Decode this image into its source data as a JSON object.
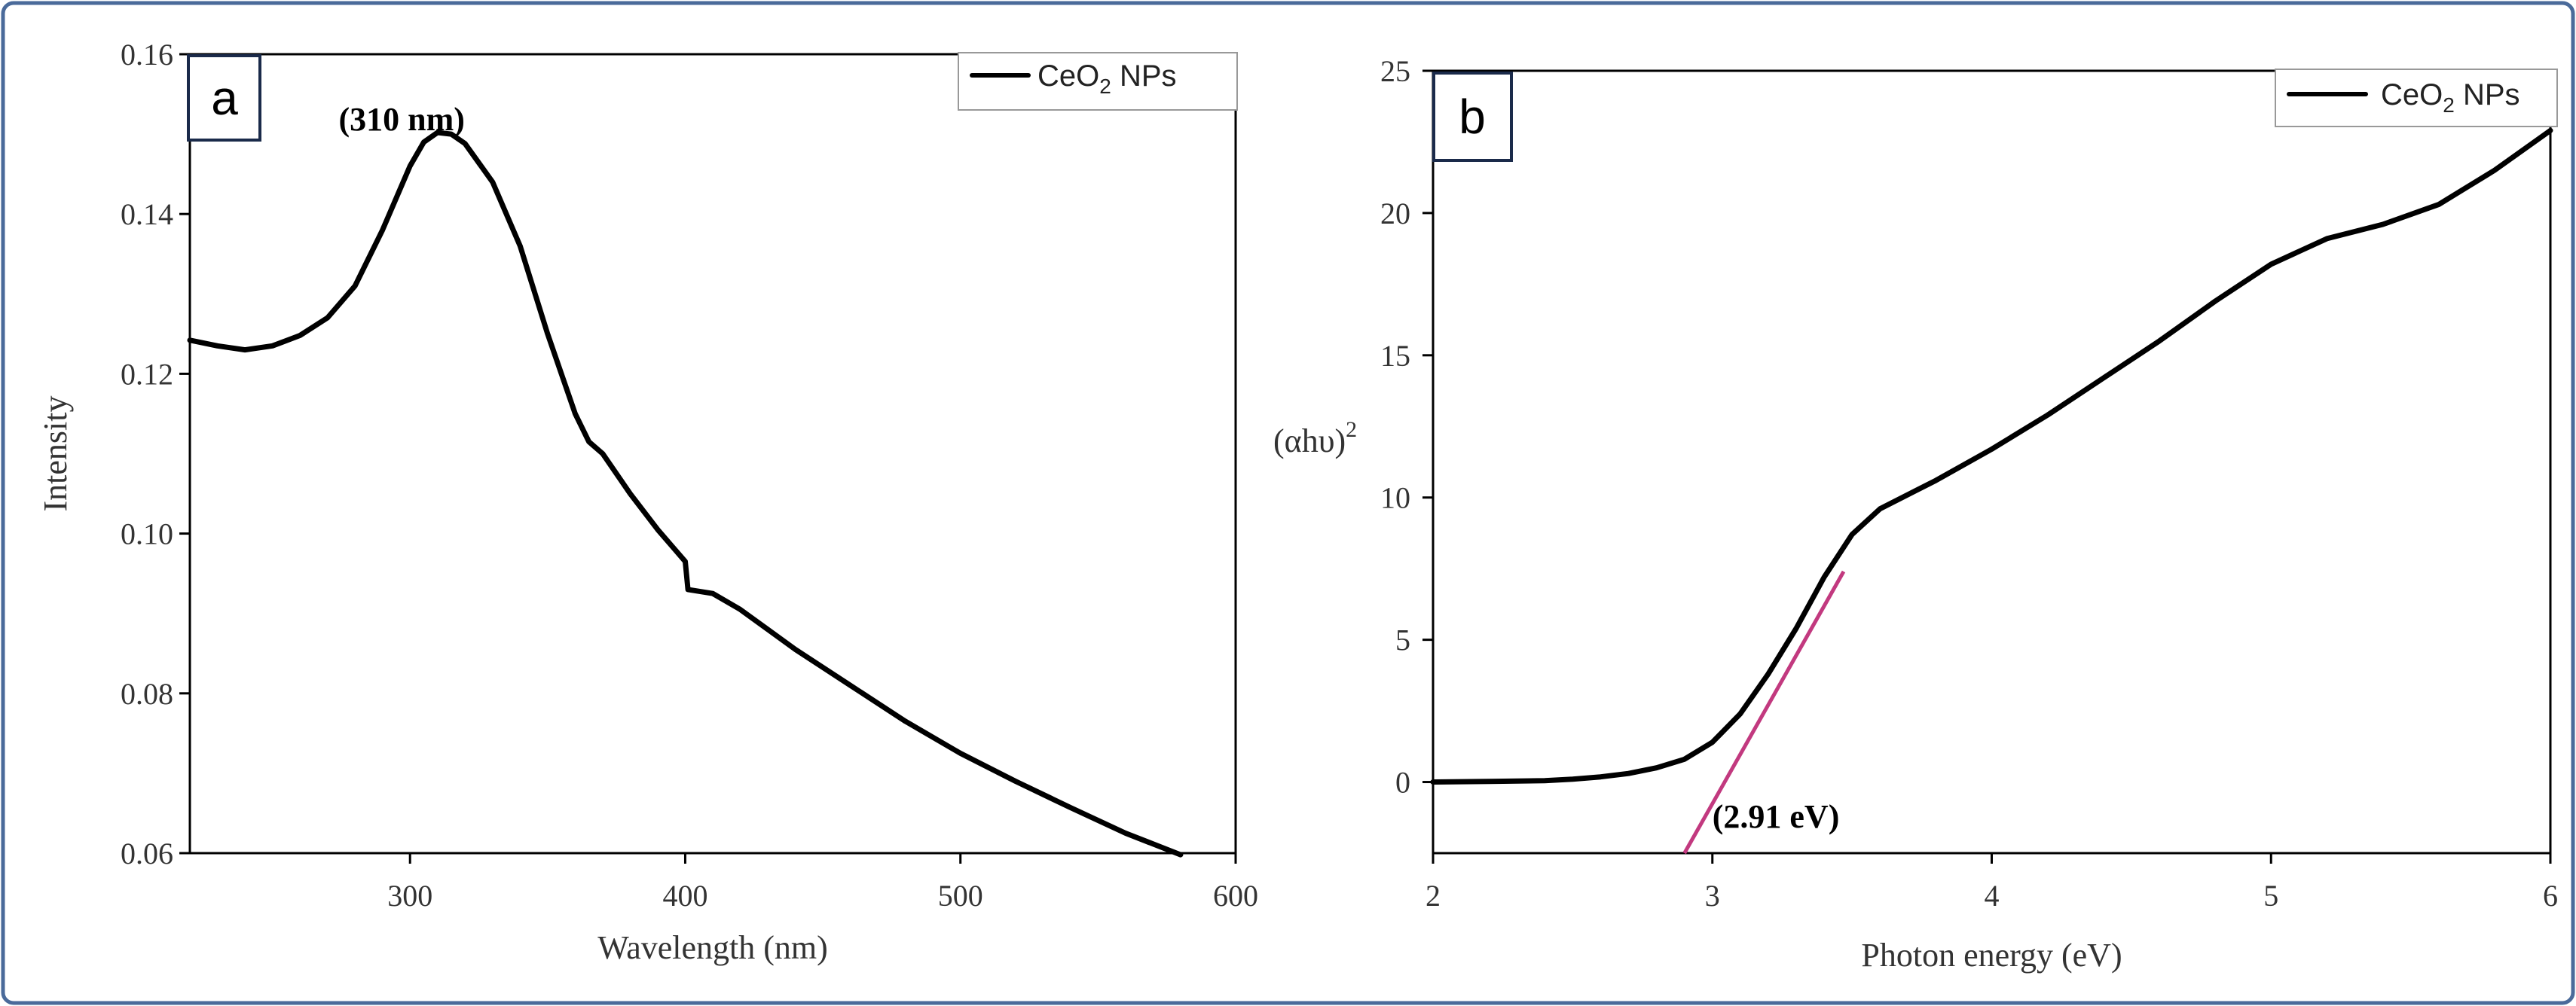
{
  "chart_data": [
    {
      "type": "line",
      "panel_label": "a",
      "title": "",
      "xlabel": "Wavelength (nm)",
      "ylabel": "Intensity",
      "xlim": [
        220,
        600
      ],
      "ylim": [
        0.06,
        0.16
      ],
      "xticks": [
        300,
        400,
        500,
        600
      ],
      "yticks": [
        0.06,
        0.08,
        0.1,
        0.12,
        0.14,
        0.16
      ],
      "ytick_labels": [
        "0.06",
        "0.08",
        "0.10",
        "0.12",
        "0.14",
        "0.16"
      ],
      "grid": false,
      "legend": {
        "position": "top-right",
        "entries": [
          {
            "name": "CeO",
            "subscript": "2",
            "suffix": " NPs"
          }
        ]
      },
      "annotations": [
        {
          "text": "(310 nm)",
          "x": 297,
          "y": 0.1505
        }
      ],
      "series": [
        {
          "name": "CeO2 NPs",
          "x": [
            220,
            230,
            240,
            250,
            260,
            270,
            280,
            290,
            300,
            305,
            310,
            315,
            320,
            330,
            340,
            350,
            360,
            365,
            370,
            380,
            390,
            395,
            400,
            401,
            410,
            420,
            440,
            460,
            480,
            500,
            520,
            540,
            560,
            580
          ],
          "y": [
            0.1242,
            0.1235,
            0.123,
            0.1235,
            0.1248,
            0.127,
            0.131,
            0.138,
            0.146,
            0.149,
            0.1502,
            0.15,
            0.1488,
            0.144,
            0.136,
            0.125,
            0.115,
            0.1115,
            0.11,
            0.105,
            0.1005,
            0.0985,
            0.0965,
            0.093,
            0.0925,
            0.0905,
            0.0855,
            0.081,
            0.0765,
            0.0725,
            0.069,
            0.0657,
            0.0625,
            0.0598
          ]
        }
      ]
    },
    {
      "type": "line",
      "panel_label": "b",
      "title": "",
      "xlabel": "Photon energy (eV)",
      "ylabel": "(αhυ)",
      "ylabel_superscript": "2",
      "xlim": [
        2,
        6
      ],
      "ylim": [
        -2.5,
        25
      ],
      "xticks": [
        2,
        3,
        4,
        5,
        6
      ],
      "yticks": [
        0,
        5,
        10,
        15,
        20,
        25
      ],
      "grid": false,
      "legend": {
        "position": "top-right",
        "entries": [
          {
            "name": "CeO",
            "subscript": "2",
            "suffix": " NPs"
          }
        ]
      },
      "annotations": [
        {
          "text": "(2.91 eV)",
          "x": 3.0,
          "y": -1.6
        }
      ],
      "fit_line": {
        "color": "#c2397f",
        "x": [
          2.9,
          3.47
        ],
        "y": [
          -2.5,
          7.4
        ]
      },
      "series": [
        {
          "name": "CeO2 NPs",
          "x": [
            2.0,
            2.2,
            2.4,
            2.5,
            2.6,
            2.7,
            2.8,
            2.9,
            3.0,
            3.1,
            3.2,
            3.3,
            3.4,
            3.5,
            3.6,
            3.7,
            3.8,
            4.0,
            4.2,
            4.4,
            4.6,
            4.8,
            5.0,
            5.2,
            5.4,
            5.6,
            5.8,
            6.0
          ],
          "y": [
            0,
            0.02,
            0.05,
            0.1,
            0.18,
            0.3,
            0.5,
            0.8,
            1.4,
            2.4,
            3.8,
            5.4,
            7.2,
            8.7,
            9.6,
            10.1,
            10.6,
            11.7,
            12.9,
            14.2,
            15.5,
            16.9,
            18.2,
            19.1,
            19.6,
            20.3,
            21.5,
            22.9
          ]
        }
      ]
    }
  ]
}
